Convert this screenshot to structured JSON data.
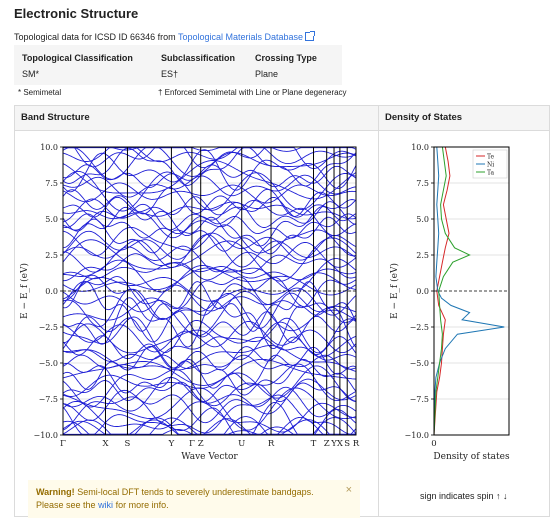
{
  "header": {
    "title": "Electronic Structure",
    "topo_prefix": "Topological data for ICSD ID 66346 from",
    "topo_link": "Topological Materials Database"
  },
  "classification": {
    "headers": [
      "Topological Classification",
      "Subclassification",
      "Crossing Type"
    ],
    "values": [
      "SM*",
      "ES†",
      "Plane"
    ],
    "note_left": "* Semimetal",
    "note_right": "† Enforced Semimetal with Line or Plane degeneracy"
  },
  "band_panel": {
    "title": "Band Structure"
  },
  "dos_panel": {
    "title": "Density of States"
  },
  "warning": {
    "strong": "Warning!",
    "text": "Semi-local DFT tends to severely underestimate bandgaps.",
    "line2_pre": "Please see the",
    "link": "wiki",
    "line2_post": "for more info.",
    "close": "×"
  },
  "spin_note": "sign indicates spin ↑ ↓",
  "colors": {
    "bands": "#1f1fd6",
    "link": "#3273dc",
    "warning_bg": "#fffbeb"
  },
  "chart_data": [
    {
      "type": "line",
      "title": "",
      "xlabel": "Wave Vector",
      "ylabel": "E − E_f (eV)",
      "ylim": [
        -10,
        10
      ],
      "y_ticks": [
        "10.0",
        "7.5",
        "5.0",
        "2.5",
        "0.0",
        "−2.5",
        "−5.0",
        "−7.5",
        "−10.0"
      ],
      "x_ticks": [
        "Γ",
        "X",
        "S",
        "Y",
        "Γ",
        "Z",
        "U",
        "R",
        "T",
        "Z",
        "Y",
        "X",
        "S",
        "R"
      ],
      "x_tick_pos": [
        0.0,
        0.145,
        0.22,
        0.37,
        0.44,
        0.47,
        0.61,
        0.71,
        0.855,
        0.9,
        0.925,
        0.945,
        0.97,
        1.0
      ],
      "grid": true,
      "series_color": "#1f1fd6",
      "note": "dense band structure, approx. 60 bands"
    },
    {
      "type": "line",
      "xlabel": "Density of states",
      "ylabel": "E − E_f (eV)",
      "ylim": [
        -10,
        10
      ],
      "x_ticks": [
        "0"
      ],
      "y_ticks": [
        "10.0",
        "7.5",
        "5.0",
        "2.5",
        "0.0",
        "−2.5",
        "−5.0",
        "−7.5",
        "−10.0"
      ],
      "legend": [
        "Te",
        "Ni",
        "Ta"
      ],
      "legend_position": "top-right",
      "series": [
        {
          "name": "Te",
          "color": "#d62728",
          "energy": [
            -10,
            -7,
            -6,
            -5,
            -4,
            -3,
            -2,
            -1,
            0,
            1,
            2,
            3,
            4,
            5,
            6,
            7,
            8,
            9,
            10
          ],
          "dos": [
            0,
            0.3,
            0.6,
            0.8,
            0.9,
            1.0,
            1.2,
            0.5,
            0.3,
            0.6,
            0.9,
            1.2,
            1.6,
            1.3,
            1.0,
            1.4,
            1.7,
            1.5,
            1.2
          ]
        },
        {
          "name": "Ni",
          "color": "#1f77b4",
          "energy": [
            -10,
            -7,
            -6,
            -5,
            -4,
            -3,
            -2.5,
            -2,
            -1.5,
            -1,
            -0.5,
            0,
            1,
            2,
            3,
            4,
            5,
            6,
            7,
            8,
            9,
            10
          ],
          "dos": [
            0,
            0.1,
            0.2,
            0.6,
            1.2,
            2.5,
            7.5,
            3.0,
            3.8,
            1.8,
            0.8,
            0.4,
            0.2,
            0.3,
            0.4,
            0.5,
            0.4,
            0.3,
            0.4,
            0.5,
            0.4,
            0.3
          ]
        },
        {
          "name": "Ta",
          "color": "#2ca02c",
          "energy": [
            -10,
            -7,
            -6,
            -5,
            -4,
            -3,
            -2,
            -1,
            0,
            1,
            2,
            2.5,
            3,
            4,
            5,
            6,
            7,
            8,
            9,
            10
          ],
          "dos": [
            0,
            0.2,
            0.4,
            0.6,
            0.8,
            0.9,
            0.7,
            0.6,
            0.5,
            1.0,
            2.0,
            3.8,
            2.2,
            1.2,
            0.8,
            0.7,
            1.0,
            1.3,
            1.1,
            0.9
          ]
        }
      ],
      "xlim": [
        0,
        8
      ]
    }
  ]
}
